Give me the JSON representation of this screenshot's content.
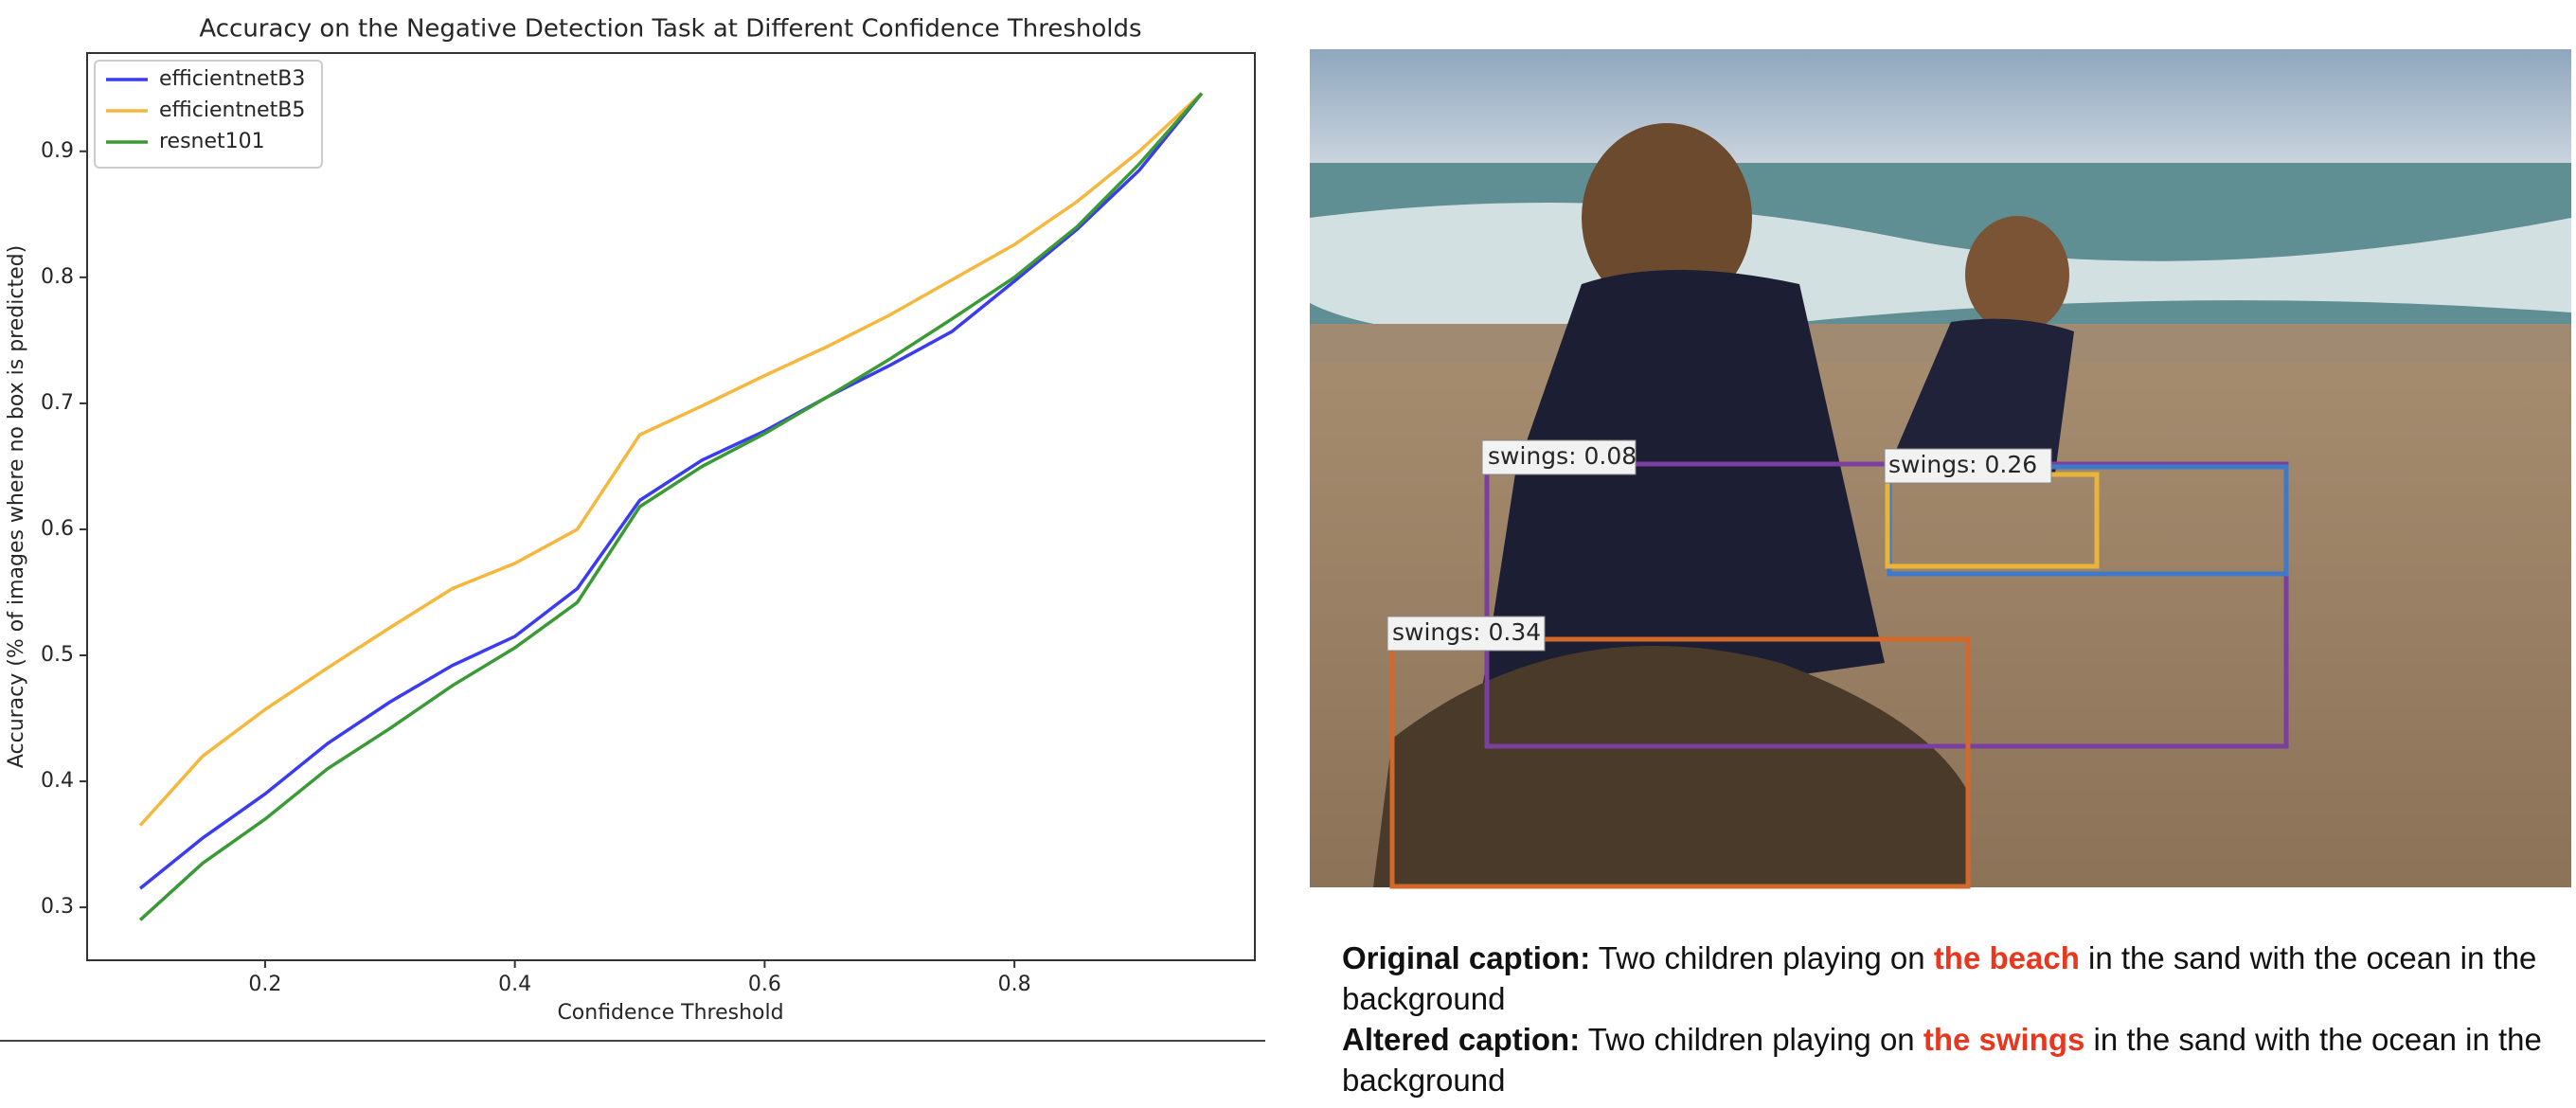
{
  "chart_data": {
    "type": "line",
    "title": "Accuracy on the Negative Detection Task at Different Confidence Thresholds",
    "x_label": "Confidence Threshold",
    "y_label": "Accuracy (% of images where no box is predicted)",
    "x": [
      0.1,
      0.15,
      0.2,
      0.25,
      0.3,
      0.35,
      0.4,
      0.45,
      0.5,
      0.55,
      0.6,
      0.65,
      0.7,
      0.75,
      0.8,
      0.85,
      0.9,
      0.95
    ],
    "series": [
      {
        "name": "efficientnetB3",
        "color": "#3b3bf0",
        "values": [
          0.315,
          0.355,
          0.39,
          0.43,
          0.463,
          0.492,
          0.515,
          0.553,
          0.623,
          0.655,
          0.678,
          0.705,
          0.73,
          0.757,
          0.797,
          0.838,
          0.885,
          0.946
        ]
      },
      {
        "name": "efficientnetB5",
        "color": "#f5b83d",
        "values": [
          0.365,
          0.42,
          0.457,
          0.49,
          0.522,
          0.553,
          0.573,
          0.6,
          0.675,
          0.698,
          0.722,
          0.745,
          0.77,
          0.798,
          0.826,
          0.86,
          0.9,
          0.946
        ]
      },
      {
        "name": "resnet101",
        "color": "#3a9a35",
        "values": [
          0.29,
          0.335,
          0.37,
          0.41,
          0.442,
          0.476,
          0.506,
          0.542,
          0.618,
          0.65,
          0.676,
          0.705,
          0.735,
          0.767,
          0.8,
          0.84,
          0.89,
          0.946
        ]
      }
    ],
    "xlim": [
      0.0575,
      0.9925
    ],
    "ylim": [
      0.258,
      0.978
    ],
    "xticks": [
      0.2,
      0.4,
      0.6,
      0.8
    ],
    "yticks": [
      0.3,
      0.4,
      0.5,
      0.6,
      0.7,
      0.8,
      0.9
    ],
    "legend": "upper left"
  },
  "image": {
    "detections": [
      {
        "label": "swings: 0.08",
        "color": "#7b3fa0"
      },
      {
        "label": "swings: 0.26",
        "color": "#e8b53a"
      },
      {
        "label": "swings: 0.34",
        "color": "#d2692a"
      }
    ]
  },
  "captions": [
    {
      "label": "Original caption:",
      "before": "Two children playing on",
      "highlight": "the beach",
      "after": "in the sand with the ocean in the background"
    },
    {
      "label": "Altered caption:",
      "before": "Two children playing on",
      "highlight": "the swings",
      "after": "in the sand with the ocean in the background"
    }
  ]
}
